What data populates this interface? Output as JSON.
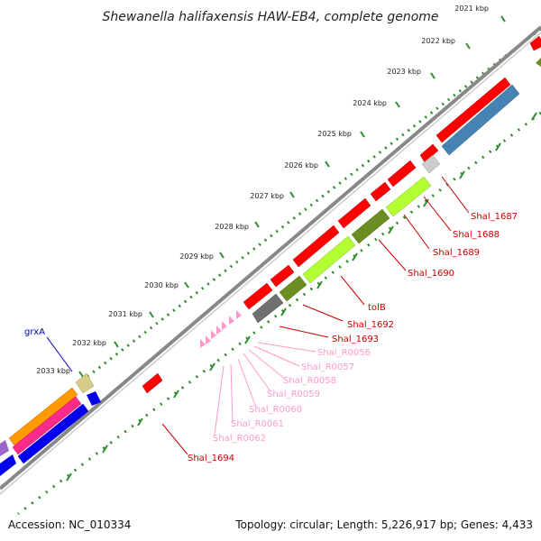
{
  "title": "Shewanella halifaxensis HAW-EB4, complete genome",
  "footer": {
    "accession": "Accession: NC_010334",
    "summary": "Topology: circular; Length: 5,226,917 bp; Genes: 4,433"
  },
  "ticks": [
    "2021 kbp",
    "2022 kbp",
    "2023 kbp",
    "2024 kbp",
    "2025 kbp",
    "2026 kbp",
    "2027 kbp",
    "2028 kbp",
    "2029 kbp",
    "2030 kbp",
    "2031 kbp",
    "2032 kbp",
    "2033 kbp"
  ],
  "colors": {
    "cds": "#ff0000",
    "trna": "#ff99cc",
    "backbone": "#808080",
    "gc_light": "#b3ff33",
    "gc_dark": "#6b8e23",
    "gray_feature": "#707070",
    "blue_feature": "#4682b4",
    "dotted_track": "#2e8b2e",
    "tick_marks": "#2e8b2e",
    "grxA_label": "#0000cc",
    "cds_label": "#cc0000",
    "trna_label": "#ff99cc"
  },
  "genes": [
    {
      "label": "Shal_1687",
      "type": "cds"
    },
    {
      "label": "Shal_1688",
      "type": "cds"
    },
    {
      "label": "Shal_1689",
      "type": "cds"
    },
    {
      "label": "Shal_1690",
      "type": "cds"
    },
    {
      "label": "tolB",
      "type": "cds"
    },
    {
      "label": "Shal_1692",
      "type": "cds"
    },
    {
      "label": "Shal_1693",
      "type": "cds"
    },
    {
      "label": "Shal_R0056",
      "type": "trna"
    },
    {
      "label": "Shal_R0057",
      "type": "trna"
    },
    {
      "label": "Shal_R0058",
      "type": "trna"
    },
    {
      "label": "Shal_R0059",
      "type": "trna"
    },
    {
      "label": "Shal_R0060",
      "type": "trna"
    },
    {
      "label": "Shal_R0061",
      "type": "trna"
    },
    {
      "label": "Shal_R0062",
      "type": "trna"
    },
    {
      "label": "Shal_1694",
      "type": "cds"
    },
    {
      "label": "grxA",
      "type": "other"
    }
  ]
}
